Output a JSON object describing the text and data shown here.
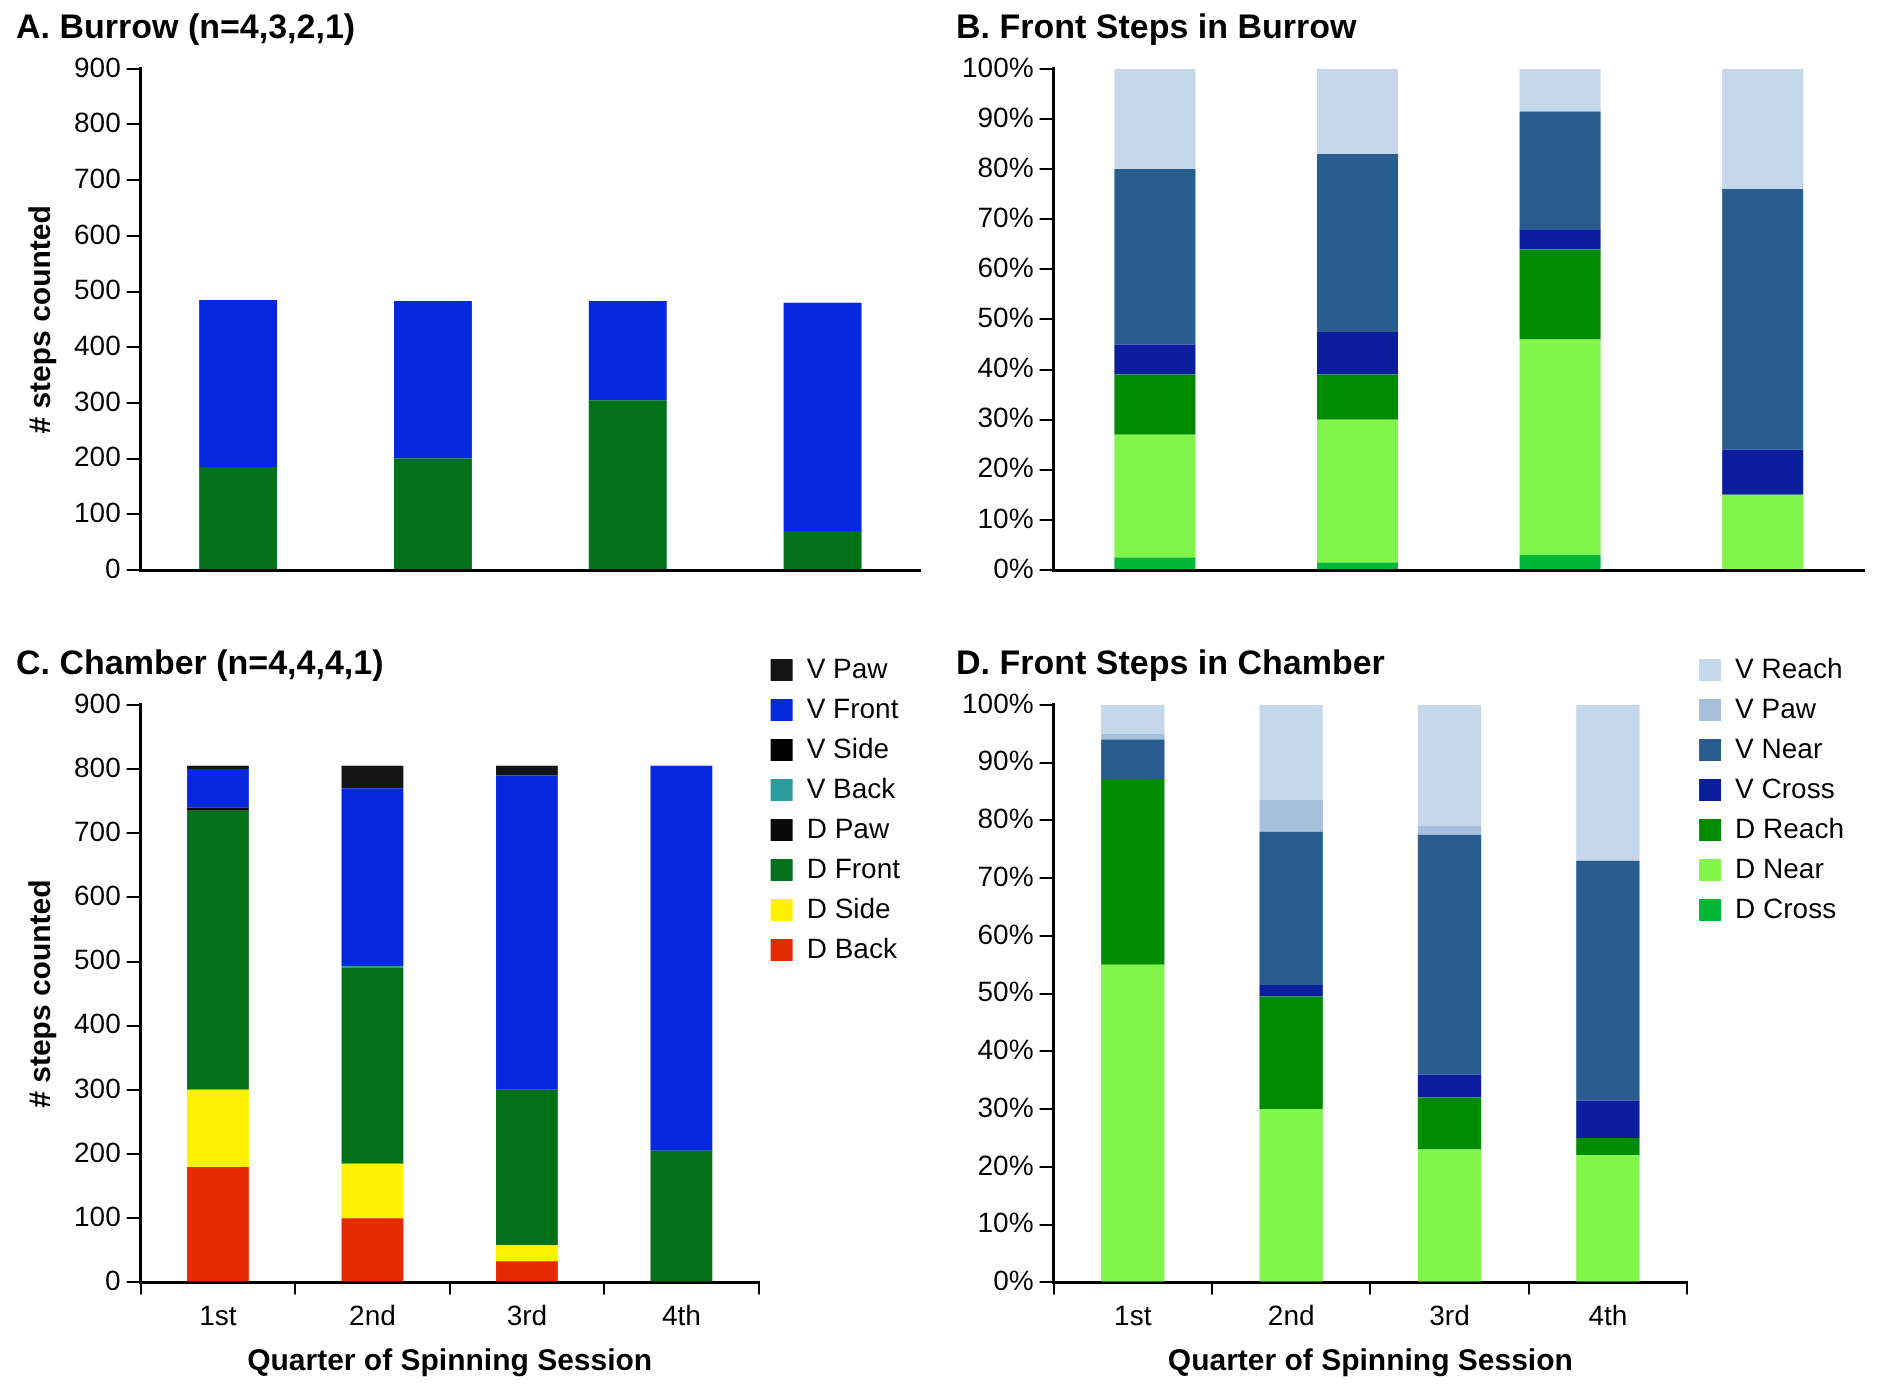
{
  "chart_data": [
    {
      "type": "bar",
      "title": "A. Burrow (n=4,3,2,1)",
      "ylabel": "# steps counted",
      "categories": [
        null,
        null,
        null,
        null
      ],
      "stacked": true,
      "tick_labels": "y",
      "ylim": [
        0,
        900
      ],
      "yticks": [
        0,
        100,
        200,
        300,
        400,
        500,
        600,
        700,
        800,
        900
      ],
      "legend": false,
      "series": [
        {
          "color": "#03701a",
          "values": [
            185,
            200,
            305,
            70
          ]
        },
        {
          "color": "#0527dd",
          "values": [
            300,
            283,
            178,
            410
          ]
        }
      ]
    },
    {
      "type": "bar",
      "title": "B. Front Steps in Burrow",
      "categories": [
        null,
        null,
        null,
        null
      ],
      "stacked": true,
      "tick_labels": "y",
      "ylim": [
        0,
        100
      ],
      "yticks": [
        {
          "value": 0,
          "label": "0%"
        },
        {
          "value": 10,
          "label": "10%"
        },
        {
          "value": 20,
          "label": "20%"
        },
        {
          "value": 30,
          "label": "30%"
        },
        {
          "value": 40,
          "label": "40%"
        },
        {
          "value": 50,
          "label": "50%"
        },
        {
          "value": 60,
          "label": "60%"
        },
        {
          "value": 70,
          "label": "70%"
        },
        {
          "value": 80,
          "label": "80%"
        },
        {
          "value": 90,
          "label": "90%"
        },
        {
          "value": 100,
          "label": "100%"
        }
      ],
      "legend": false,
      "series": [
        {
          "color": "#00b838",
          "values": [
            2.5,
            1.5,
            3,
            0
          ]
        },
        {
          "color": "#82f54a",
          "values": [
            24.5,
            28.5,
            43,
            15
          ]
        },
        {
          "color": "#008c00",
          "values": [
            12,
            9,
            18,
            0
          ]
        },
        {
          "color": "#0a1e9e",
          "values": [
            6,
            8.5,
            4,
            9
          ]
        },
        {
          "color": "#2a5d8f",
          "values": [
            35,
            35.5,
            23.5,
            52
          ]
        },
        {
          "color": "#c5d7eb",
          "values": [
            20,
            17,
            8.5,
            24
          ]
        }
      ]
    },
    {
      "type": "bar",
      "title": "C. Chamber (n=4,4,4,1)",
      "ylabel": "# steps counted",
      "xlabel": "Quarter of Spinning Session",
      "categories": [
        "1st",
        "2nd",
        "3rd",
        "4th"
      ],
      "stacked": true,
      "ylim": [
        0,
        900
      ],
      "yticks": [
        0,
        100,
        200,
        300,
        400,
        500,
        600,
        700,
        800,
        900
      ],
      "legend": "right",
      "series": [
        {
          "name": "D Back",
          "color": "#e62a00",
          "values": [
            180,
            100,
            33,
            0
          ]
        },
        {
          "name": "D Side",
          "color": "#fff200",
          "values": [
            120,
            85,
            25,
            0
          ]
        },
        {
          "name": "D Front",
          "color": "#03701a",
          "values": [
            435,
            305,
            242,
            205
          ]
        },
        {
          "name": "D Paw",
          "color": "#0a0a0a",
          "values": [
            5,
            0,
            0,
            0
          ]
        },
        {
          "name": "V Back",
          "color": "#2a9d9d",
          "values": [
            0,
            3,
            0,
            0
          ]
        },
        {
          "name": "V Side",
          "color": "#000000",
          "values": [
            0,
            0,
            0,
            0
          ]
        },
        {
          "name": "V Front",
          "color": "#0527dd",
          "values": [
            60,
            277,
            490,
            600
          ]
        },
        {
          "name": "V Paw",
          "color": "#141414",
          "values": [
            5,
            35,
            15,
            0
          ]
        }
      ]
    },
    {
      "type": "bar",
      "title": "D. Front Steps in Chamber",
      "xlabel": "Quarter of Spinning Session",
      "categories": [
        "1st",
        "2nd",
        "3rd",
        "4th"
      ],
      "stacked": true,
      "ylim": [
        0,
        100
      ],
      "yticks": [
        {
          "value": 0,
          "label": "0%"
        },
        {
          "value": 10,
          "label": "10%"
        },
        {
          "value": 20,
          "label": "20%"
        },
        {
          "value": 30,
          "label": "30%"
        },
        {
          "value": 40,
          "label": "40%"
        },
        {
          "value": 50,
          "label": "50%"
        },
        {
          "value": 60,
          "label": "60%"
        },
        {
          "value": 70,
          "label": "70%"
        },
        {
          "value": 80,
          "label": "80%"
        },
        {
          "value": 90,
          "label": "90%"
        },
        {
          "value": 100,
          "label": "100%"
        }
      ],
      "legend": "right",
      "series": [
        {
          "name": "D Cross",
          "color": "#00b838",
          "values": [
            0,
            0,
            0,
            0
          ]
        },
        {
          "name": "D Near",
          "color": "#82f54a",
          "values": [
            55,
            30,
            23,
            22
          ]
        },
        {
          "name": "D Reach",
          "color": "#008c00",
          "values": [
            32,
            19.5,
            9,
            3
          ]
        },
        {
          "name": "V Cross",
          "color": "#0a1e9e",
          "values": [
            0,
            2,
            4,
            6.5
          ]
        },
        {
          "name": "V Near",
          "color": "#2a5d8f",
          "values": [
            7,
            26.5,
            41.5,
            41.5
          ]
        },
        {
          "name": "V Paw",
          "color": "#a5bfdd",
          "values": [
            1,
            5.5,
            1.5,
            0
          ]
        },
        {
          "name": "V Reach",
          "color": "#c5d7eb",
          "values": [
            5,
            16.5,
            21,
            27
          ]
        }
      ]
    }
  ]
}
